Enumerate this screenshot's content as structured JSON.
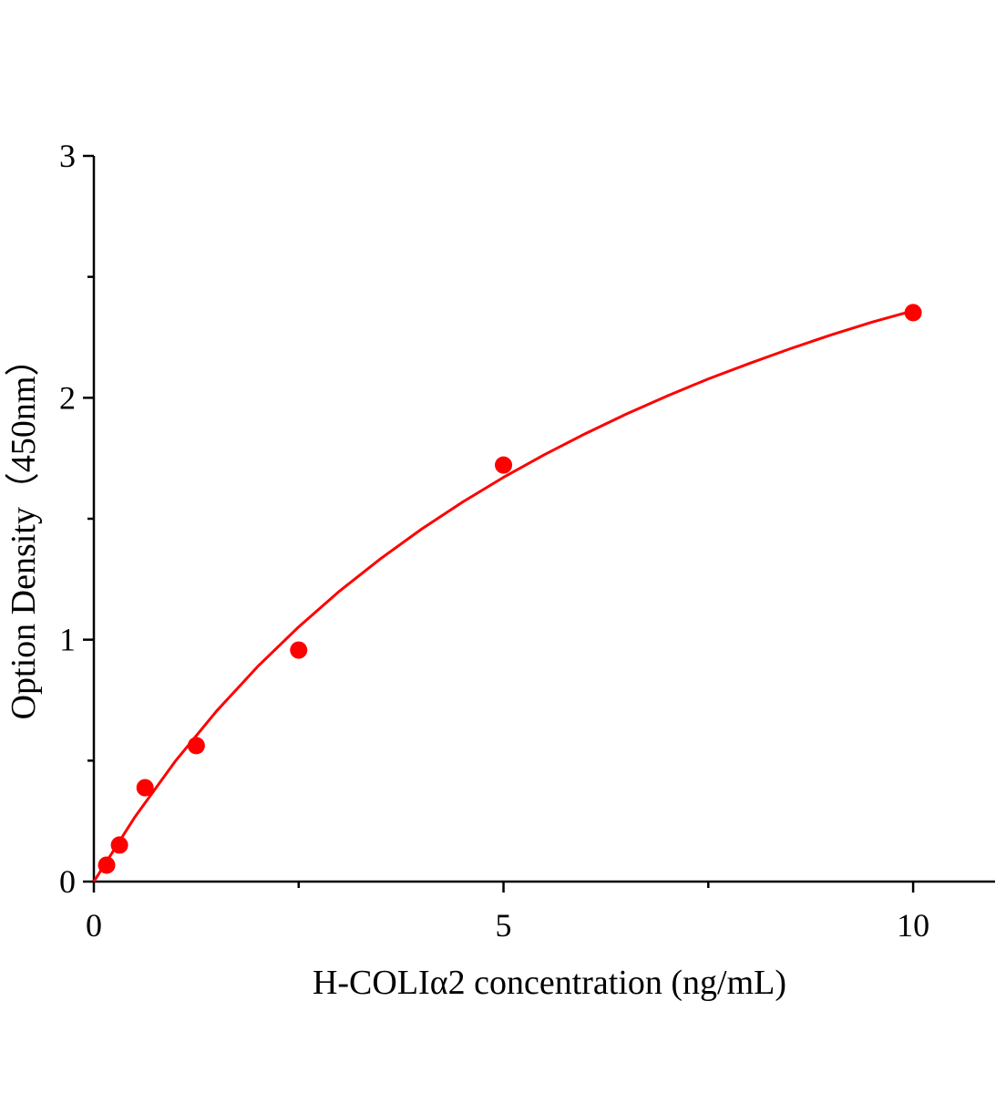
{
  "chart_data": {
    "type": "scatter",
    "title": "",
    "xlabel": "H-COLIα2 concentration (ng/mL)",
    "ylabel": "Option Density（450nm）",
    "xlim": [
      0,
      11
    ],
    "ylim": [
      0,
      3
    ],
    "x_ticks": [
      0,
      5,
      10
    ],
    "x_tick_labels": [
      "0",
      "5",
      "10"
    ],
    "x_minor_ticks": [
      2.5,
      7.5
    ],
    "y_ticks": [
      0,
      1,
      2,
      3
    ],
    "y_tick_labels": [
      "0",
      "1",
      "2",
      "3"
    ],
    "y_minor_ticks": [
      0.5,
      1.5,
      2.5
    ],
    "grid": false,
    "legend": "none",
    "colors": {
      "points": "#ff0000",
      "curve": "#ff0000",
      "axis": "#000000"
    },
    "series": [
      {
        "type": "scatter",
        "x": [
          0.156,
          0.3125,
          0.625,
          1.25,
          2.5,
          5,
          10
        ],
        "y": [
          0.068,
          0.151,
          0.388,
          0.562,
          0.957,
          1.722,
          2.352
        ]
      },
      {
        "type": "line",
        "x": [
          0,
          0.5,
          1,
          1.5,
          2,
          2.5,
          3,
          3.5,
          4,
          4.5,
          5,
          5.5,
          6,
          6.5,
          7,
          7.5,
          8,
          8.5,
          9,
          9.5,
          10
        ],
        "y": [
          0,
          0.267,
          0.5,
          0.706,
          0.889,
          1.053,
          1.201,
          1.335,
          1.457,
          1.569,
          1.671,
          1.765,
          1.852,
          1.933,
          2.008,
          2.078,
          2.142,
          2.203,
          2.26,
          2.313,
          2.36
        ]
      }
    ]
  }
}
